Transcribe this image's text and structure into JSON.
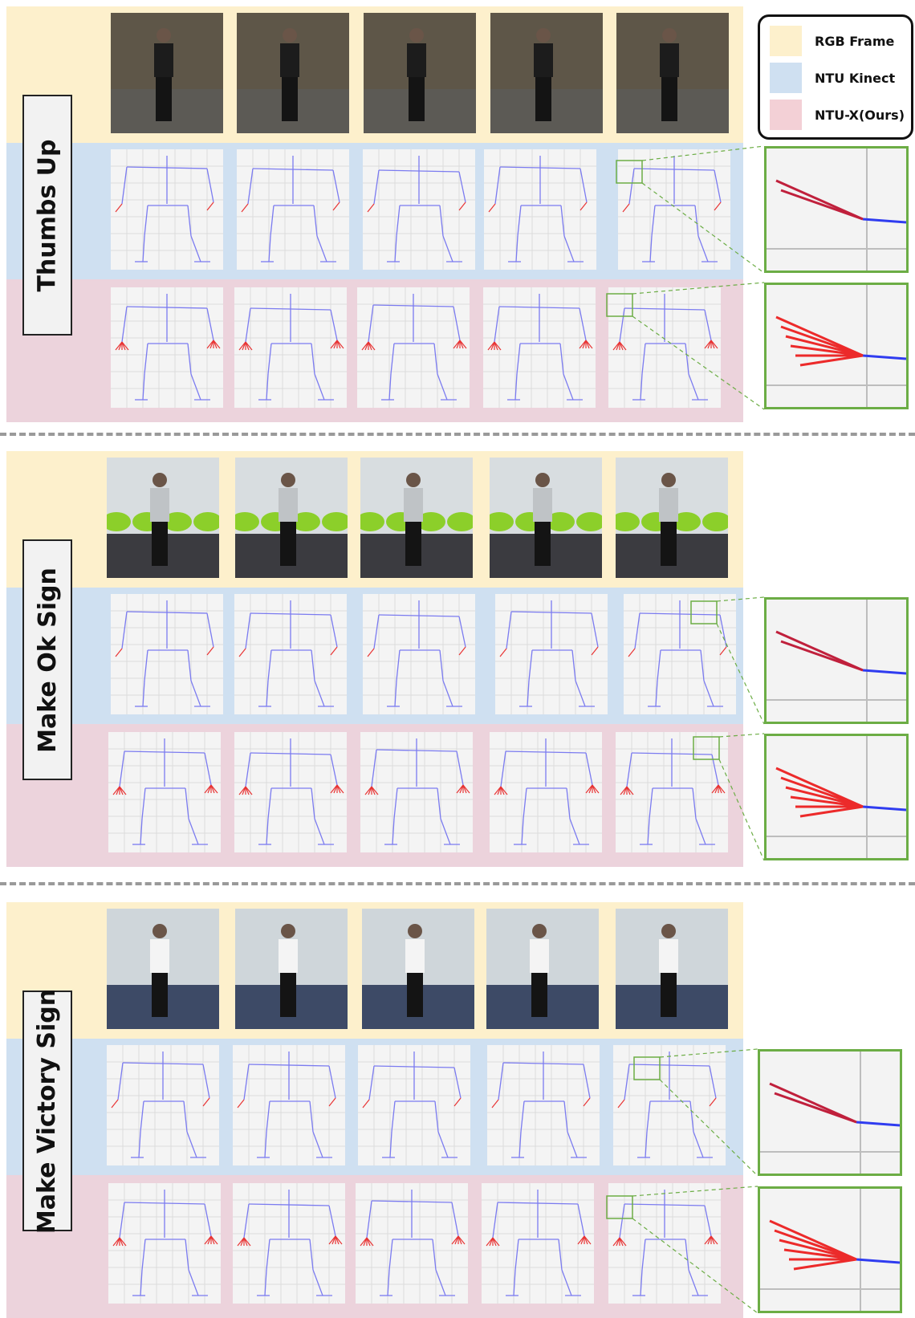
{
  "legend": {
    "items": [
      {
        "label": "RGB Frame",
        "color": "#fdf0cc"
      },
      {
        "label": "NTU Kinect",
        "color": "#cfe0f1"
      },
      {
        "label": "NTU-X(Ours)",
        "color": "#f3d0d6"
      }
    ]
  },
  "sections": [
    {
      "label": "Thumbs Up"
    },
    {
      "label": "Make Ok Sign"
    },
    {
      "label": "Make Victory Sign"
    }
  ],
  "colors": {
    "rgb_band": "#fdf0cc",
    "kinect_band": "#cfe0f1",
    "ours_band": "#ecd3dc",
    "body_skeleton": "#7b7bf0",
    "hand_skeleton": "#e83535",
    "zoom_border": "#6cad45"
  }
}
